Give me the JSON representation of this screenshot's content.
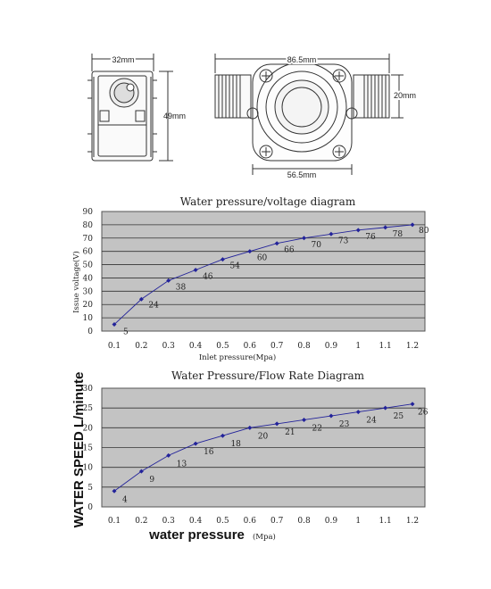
{
  "drawing": {
    "dims": [
      "32mm",
      "49mm",
      "86.5mm",
      "20mm",
      "56.5mm"
    ]
  },
  "chart_data": [
    {
      "type": "line",
      "title": "Water pressure/voltage diagram",
      "xlabel": "Inlet pressure(Mpa)",
      "ylabel": "Issue voltage(V)",
      "x": [
        0.1,
        0.2,
        0.3,
        0.4,
        0.5,
        0.6,
        0.7,
        0.8,
        0.9,
        1,
        1.1,
        1.2
      ],
      "series": [
        {
          "values": [
            5,
            24,
            38,
            46,
            54,
            60,
            66,
            70,
            73,
            76,
            78,
            80
          ]
        }
      ],
      "xticks": [
        "0.1",
        "0.2",
        "0.3",
        "0.4",
        "0.5",
        "0.6",
        "0.7",
        "0.8",
        "0.9",
        "1",
        "1.1",
        "1.2"
      ],
      "yticks": [
        "0",
        "10",
        "20",
        "30",
        "40",
        "50",
        "60",
        "70",
        "80",
        "90"
      ],
      "ylim": [
        0,
        90
      ],
      "grid": true,
      "colors": {
        "plot_bg": "#c3c3c3",
        "line": "#23239a",
        "grid": "#333333"
      }
    },
    {
      "type": "line",
      "title": "Water Pressure/Flow Rate Diagram",
      "xlabel_main": "water pressure",
      "xlabel_unit": "(Mpa)",
      "ylabel": "WATER SPEED L/minute",
      "x": [
        0.1,
        0.2,
        0.3,
        0.4,
        0.5,
        0.6,
        0.7,
        0.8,
        0.9,
        1,
        1.1,
        1.2
      ],
      "series": [
        {
          "values": [
            4,
            9,
            13,
            16,
            18,
            20,
            21,
            22,
            23,
            24,
            25,
            26
          ]
        }
      ],
      "xticks": [
        "0.1",
        "0.2",
        "0.3",
        "0.4",
        "0.5",
        "0.6",
        "0.7",
        "0.8",
        "0.9",
        "1",
        "1.1",
        "1.2"
      ],
      "yticks": [
        "0",
        "5",
        "10",
        "15",
        "20",
        "25",
        "30"
      ],
      "ylim": [
        0,
        30
      ],
      "grid": true,
      "colors": {
        "plot_bg": "#c3c3c3",
        "line": "#23239a",
        "grid": "#333333"
      }
    }
  ]
}
